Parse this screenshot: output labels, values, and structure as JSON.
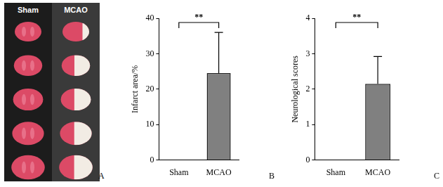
{
  "image_panel": {
    "panel_label": "A",
    "labels": [
      "Sham",
      "MCAO"
    ],
    "slices": 5
  },
  "chart_data": [
    {
      "type": "bar",
      "panel_label": "B",
      "categories": [
        "Sham",
        "MCAO"
      ],
      "values": [
        0,
        24.5
      ],
      "errors": [
        0,
        11.5
      ],
      "color": "#808080",
      "y_label": "Infarct area/%",
      "ylim": [
        0,
        40
      ],
      "yticks": [
        0,
        10,
        20,
        30,
        40
      ],
      "grid": false,
      "significance": {
        "label": "**",
        "pair": [
          "Sham",
          "MCAO"
        ]
      }
    },
    {
      "type": "bar",
      "panel_label": "C",
      "categories": [
        "Sham",
        "MCAO"
      ],
      "values": [
        0,
        2.15
      ],
      "errors": [
        0,
        0.77
      ],
      "color": "#808080",
      "y_label": "Neurological scores",
      "ylim": [
        0,
        4
      ],
      "yticks": [
        0,
        1,
        2,
        3,
        4
      ],
      "grid": false,
      "significance": {
        "label": "**",
        "pair": [
          "Sham",
          "MCAO"
        ]
      }
    }
  ]
}
